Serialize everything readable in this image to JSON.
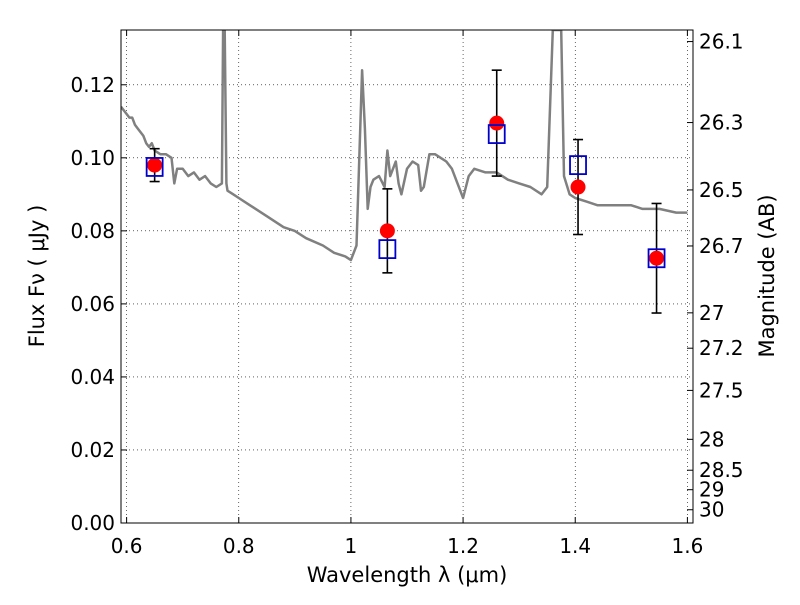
{
  "chart_data": {
    "type": "scatter",
    "title": "",
    "xlabel": "Wavelength  λ (μm)",
    "ylabel": "Flux  Fν  ( μJy )",
    "y2label": "Magnitude (AB)",
    "xlim": [
      0.59,
      1.61
    ],
    "ylim": [
      0.0,
      0.135
    ],
    "grid": true,
    "x_ticks": [
      0.6,
      0.8,
      1.0,
      1.2,
      1.4,
      1.6
    ],
    "x_tick_labels": [
      "0.6",
      "0.8",
      "1",
      "1.2",
      "1.4",
      "1.6"
    ],
    "y_ticks": [
      0.0,
      0.02,
      0.04,
      0.06,
      0.08,
      0.1,
      0.12
    ],
    "y_tick_labels": [
      "0.00",
      "0.02",
      "0.04",
      "0.06",
      "0.08",
      "0.10",
      "0.12"
    ],
    "y2_ticks": [
      26.1,
      26.3,
      26.5,
      26.7,
      27,
      27.2,
      27.5,
      28,
      28.5,
      29,
      30
    ],
    "y2_tick_labels": [
      "26.1",
      "26.3",
      "26.5",
      "26.7",
      "27",
      "27.2",
      "27.5",
      "28",
      "28.5",
      "29",
      "30"
    ],
    "model_spectrum": {
      "color": "#808080",
      "x": [
        0.59,
        0.6,
        0.605,
        0.61,
        0.615,
        0.62,
        0.625,
        0.63,
        0.635,
        0.64,
        0.645,
        0.65,
        0.66,
        0.67,
        0.68,
        0.685,
        0.69,
        0.7,
        0.71,
        0.72,
        0.73,
        0.74,
        0.75,
        0.76,
        0.77,
        0.772,
        0.775,
        0.778,
        0.78,
        0.79,
        0.8,
        0.82,
        0.85,
        0.88,
        0.9,
        0.92,
        0.95,
        0.97,
        0.99,
        1.0,
        1.01,
        1.02,
        1.025,
        1.03,
        1.035,
        1.04,
        1.05,
        1.06,
        1.065,
        1.07,
        1.08,
        1.085,
        1.09,
        1.1,
        1.11,
        1.12,
        1.125,
        1.13,
        1.14,
        1.15,
        1.16,
        1.17,
        1.18,
        1.19,
        1.2,
        1.21,
        1.22,
        1.24,
        1.26,
        1.28,
        1.3,
        1.32,
        1.34,
        1.35,
        1.36,
        1.37,
        1.375,
        1.38,
        1.39,
        1.4,
        1.42,
        1.44,
        1.46,
        1.48,
        1.5,
        1.52,
        1.55,
        1.58,
        1.6
      ],
      "y": [
        0.114,
        0.112,
        0.111,
        0.111,
        0.109,
        0.108,
        0.107,
        0.106,
        0.104,
        0.103,
        0.104,
        0.102,
        0.101,
        0.101,
        0.1,
        0.093,
        0.097,
        0.097,
        0.095,
        0.096,
        0.094,
        0.095,
        0.093,
        0.092,
        0.093,
        0.135,
        0.135,
        0.093,
        0.091,
        0.09,
        0.089,
        0.087,
        0.084,
        0.081,
        0.08,
        0.078,
        0.076,
        0.074,
        0.073,
        0.072,
        0.076,
        0.124,
        0.108,
        0.086,
        0.092,
        0.094,
        0.095,
        0.092,
        0.102,
        0.095,
        0.099,
        0.093,
        0.09,
        0.097,
        0.099,
        0.098,
        0.091,
        0.092,
        0.101,
        0.101,
        0.1,
        0.099,
        0.097,
        0.093,
        0.089,
        0.095,
        0.097,
        0.096,
        0.096,
        0.094,
        0.093,
        0.092,
        0.09,
        0.092,
        0.135,
        0.135,
        0.135,
        0.095,
        0.09,
        0.089,
        0.088,
        0.087,
        0.087,
        0.087,
        0.087,
        0.086,
        0.086,
        0.085,
        0.085
      ]
    },
    "series": [
      {
        "name": "",
        "marker": "circle",
        "color": "#ff0000",
        "x": [
          0.65,
          1.065,
          1.26,
          1.405,
          1.545
        ],
        "y": [
          0.098,
          0.08,
          0.1095,
          0.092,
          0.0725
        ],
        "yerr": [
          0.0045,
          0.0115,
          0.0145,
          0.013,
          0.015
        ]
      },
      {
        "name": "",
        "marker": "square",
        "color": "#0000cc",
        "x": [
          0.65,
          1.065,
          1.26,
          1.405,
          1.545
        ],
        "y": [
          0.0975,
          0.075,
          0.1065,
          0.098,
          0.0725
        ]
      }
    ]
  }
}
